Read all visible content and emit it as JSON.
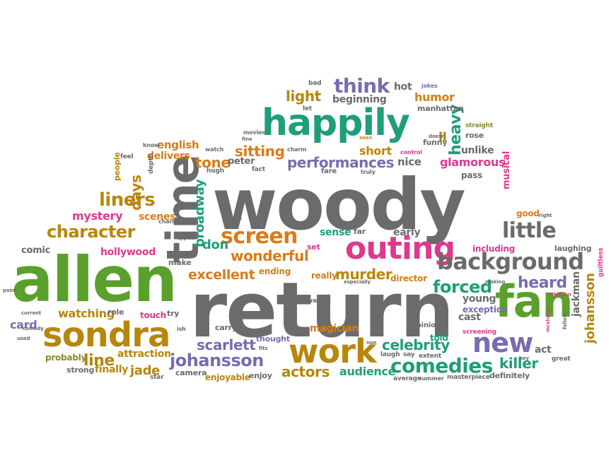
{
  "palette": {
    "gray": "#6b6b6b",
    "green": "#5aa02c",
    "teal": "#1f9e7a",
    "orange": "#d87c1a",
    "mustard": "#b8860b",
    "purple": "#7a6bb0",
    "pink": "#e0388e",
    "olive": "#8a8a2a"
  },
  "words": [
    {
      "text": "woody",
      "color": "gray"
    },
    {
      "text": "return",
      "color": "gray"
    },
    {
      "text": "allen",
      "color": "green"
    },
    {
      "text": "happily",
      "color": "teal"
    },
    {
      "text": "fan",
      "color": "green"
    },
    {
      "text": "time",
      "color": "gray"
    },
    {
      "text": "sondra",
      "color": "mustard"
    },
    {
      "text": "work",
      "color": "mustard"
    },
    {
      "text": "outing",
      "color": "pink"
    },
    {
      "text": "background",
      "color": "gray"
    },
    {
      "text": "new",
      "color": "purple"
    },
    {
      "text": "comedies",
      "color": "teal"
    },
    {
      "text": "screen",
      "color": "orange"
    },
    {
      "text": "character",
      "color": "mustard"
    },
    {
      "text": "little",
      "color": "gray"
    },
    {
      "text": "think",
      "color": "purple"
    },
    {
      "text": "johansson",
      "color": "purple"
    },
    {
      "text": "liners",
      "color": "mustard"
    },
    {
      "text": "performances",
      "color": "purple"
    },
    {
      "text": "broadway",
      "color": "teal"
    },
    {
      "text": "heavy",
      "color": "teal"
    },
    {
      "text": "murder",
      "color": "mustard"
    },
    {
      "text": "celebrity",
      "color": "teal"
    },
    {
      "text": "wonderful",
      "color": "orange"
    },
    {
      "text": "forced",
      "color": "teal"
    },
    {
      "text": "excellent",
      "color": "orange"
    },
    {
      "text": "sitting",
      "color": "orange"
    },
    {
      "text": "light",
      "color": "mustard"
    },
    {
      "text": "actors",
      "color": "mustard"
    },
    {
      "text": "heard",
      "color": "purple"
    },
    {
      "text": "scarlett",
      "color": "purple"
    },
    {
      "text": "line",
      "color": "mustard"
    },
    {
      "text": "days",
      "color": "mustard"
    },
    {
      "text": "tone",
      "color": "orange"
    },
    {
      "text": "don",
      "color": "teal"
    },
    {
      "text": "mystery",
      "color": "pink"
    },
    {
      "text": "audience",
      "color": "teal"
    },
    {
      "text": "killer",
      "color": "teal"
    },
    {
      "text": "jade",
      "color": "mustard"
    },
    {
      "text": "watching",
      "color": "mustard"
    },
    {
      "text": "humor",
      "color": "orange"
    },
    {
      "text": "glamorous",
      "color": "pink"
    },
    {
      "text": "english",
      "color": "orange"
    },
    {
      "text": "short",
      "color": "mustard"
    },
    {
      "text": "johansson",
      "color": "mustard"
    },
    {
      "text": "scenes",
      "color": "orange"
    },
    {
      "text": "hollywood",
      "color": "pink"
    },
    {
      "text": "card",
      "color": "purple"
    },
    {
      "text": "ll",
      "color": "mustard"
    },
    {
      "text": "beginning",
      "color": "gray"
    },
    {
      "text": "hot",
      "color": "gray"
    },
    {
      "text": "nice",
      "color": "gray"
    },
    {
      "text": "unlike",
      "color": "gray"
    },
    {
      "text": "delivers",
      "color": "orange"
    },
    {
      "text": "including",
      "color": "pink"
    },
    {
      "text": "attraction",
      "color": "mustard"
    },
    {
      "text": "finally",
      "color": "mustard"
    },
    {
      "text": "magician",
      "color": "orange"
    },
    {
      "text": "young",
      "color": "gray"
    },
    {
      "text": "cast",
      "color": "gray"
    },
    {
      "text": "act",
      "color": "gray"
    },
    {
      "text": "jackman",
      "color": "gray"
    },
    {
      "text": "early",
      "color": "gray"
    },
    {
      "text": "sense",
      "color": "teal"
    },
    {
      "text": "comic",
      "color": "gray"
    },
    {
      "text": "peter",
      "color": "gray"
    },
    {
      "text": "enjoyable",
      "color": "mustard"
    },
    {
      "text": "musical",
      "color": "pink"
    },
    {
      "text": "pass",
      "color": "gray"
    },
    {
      "text": "good",
      "color": "orange"
    },
    {
      "text": "laughing",
      "color": "gray"
    },
    {
      "text": "probably",
      "color": "olive"
    },
    {
      "text": "ending",
      "color": "orange"
    },
    {
      "text": "really",
      "color": "orange"
    },
    {
      "text": "director",
      "color": "orange"
    },
    {
      "text": "exception",
      "color": "purple"
    },
    {
      "text": "told",
      "color": "teal"
    },
    {
      "text": "touch",
      "color": "pink"
    },
    {
      "text": "carry",
      "color": "gray"
    },
    {
      "text": "thought",
      "color": "purple"
    },
    {
      "text": "enjoy",
      "color": "gray"
    },
    {
      "text": "camera",
      "color": "gray"
    },
    {
      "text": "strong",
      "color": "gray"
    },
    {
      "text": "role",
      "color": "gray"
    },
    {
      "text": "try",
      "color": "gray"
    },
    {
      "text": "people",
      "color": "mustard"
    },
    {
      "text": "make",
      "color": "gray"
    },
    {
      "text": "manhattan",
      "color": "gray"
    },
    {
      "text": "funny",
      "color": "gray"
    },
    {
      "text": "rose",
      "color": "gray"
    },
    {
      "text": "definitely",
      "color": "gray"
    },
    {
      "text": "fare",
      "color": "gray"
    },
    {
      "text": "far",
      "color": "gray"
    },
    {
      "text": "set",
      "color": "pink"
    },
    {
      "text": "bad",
      "color": "gray"
    },
    {
      "text": "let",
      "color": "gray"
    },
    {
      "text": "opinion",
      "color": "gray"
    },
    {
      "text": "great",
      "color": "gray"
    },
    {
      "text": "star",
      "color": "gray"
    },
    {
      "text": "masterpiece",
      "color": "gray"
    },
    {
      "text": "average",
      "color": "gray"
    },
    {
      "text": "summer",
      "color": "gray"
    },
    {
      "text": "screening",
      "color": "pink"
    },
    {
      "text": "laugh",
      "color": "gray"
    },
    {
      "text": "say",
      "color": "gray"
    },
    {
      "text": "extent",
      "color": "gray"
    },
    {
      "text": "way",
      "color": "gray"
    },
    {
      "text": "hugh",
      "color": "gray"
    },
    {
      "text": "fact",
      "color": "gray"
    },
    {
      "text": "depth",
      "color": "gray"
    },
    {
      "text": "charming",
      "color": "gray"
    },
    {
      "text": "feel",
      "color": "gray"
    },
    {
      "text": "watch",
      "color": "gray"
    },
    {
      "text": "know",
      "color": "gray"
    },
    {
      "text": "charm",
      "color": "gray"
    },
    {
      "text": "movies",
      "color": "gray"
    },
    {
      "text": "straight",
      "color": "olive"
    },
    {
      "text": "truly",
      "color": "gray"
    },
    {
      "text": "control",
      "color": "pink"
    },
    {
      "text": "jokes",
      "color": "purple"
    },
    {
      "text": "comedy",
      "color": "gray"
    },
    {
      "text": "current",
      "color": "gray"
    },
    {
      "text": "used",
      "color": "gray"
    },
    {
      "text": "point",
      "color": "gray"
    },
    {
      "text": "guiltless",
      "color": "pink"
    },
    {
      "text": "addition",
      "color": "pink"
    },
    {
      "text": "making",
      "color": "gray"
    },
    {
      "text": "especially",
      "color": "gray"
    },
    {
      "text": "plays",
      "color": "gray"
    },
    {
      "text": "appear",
      "color": "gray"
    },
    {
      "text": "ish",
      "color": "gray"
    },
    {
      "text": "right",
      "color": "gray"
    },
    {
      "text": "fellow",
      "color": "gray"
    },
    {
      "text": "mcshane",
      "color": "pink"
    },
    {
      "text": "fits",
      "color": "gray"
    },
    {
      "text": "fine",
      "color": "gray"
    },
    {
      "text": "doesn",
      "color": "gray"
    },
    {
      "text": "seen",
      "color": "orange"
    },
    {
      "text": "hey",
      "color": "gray"
    },
    {
      "text": "non",
      "color": "gray"
    }
  ]
}
